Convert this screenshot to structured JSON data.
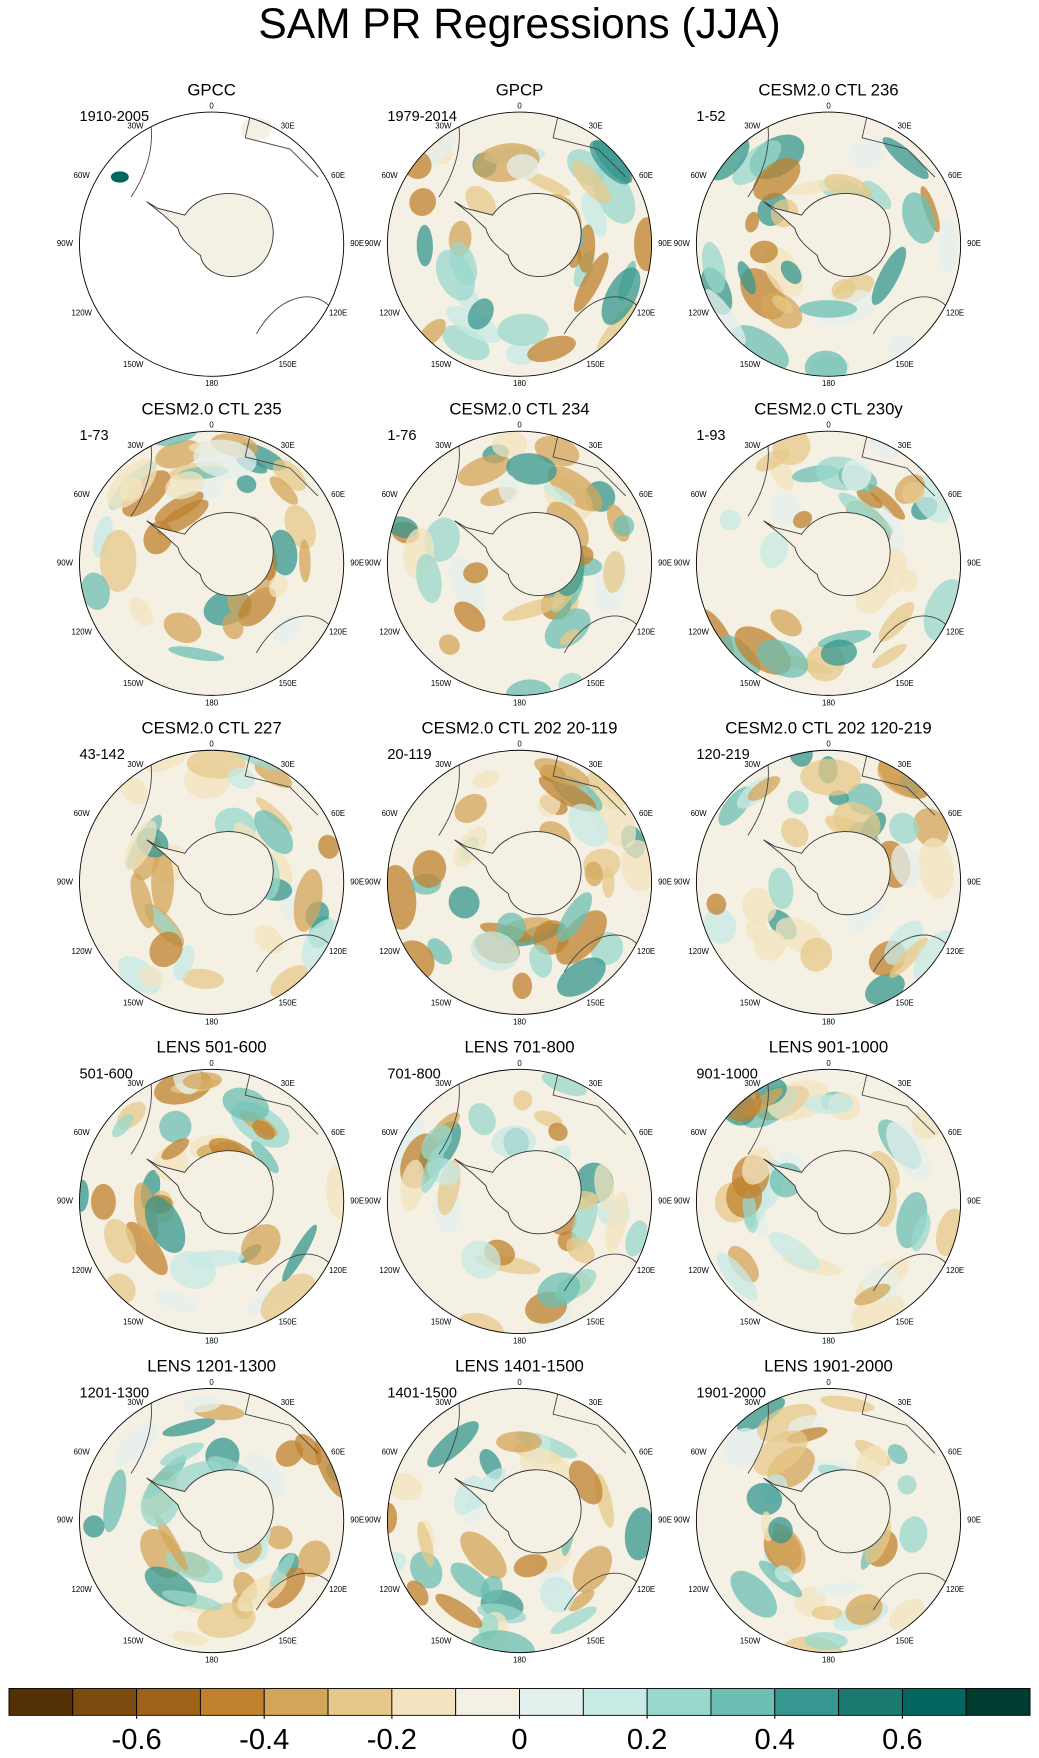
{
  "title": "SAM PR Regressions (JJA)",
  "lon_labels": [
    "0",
    "30E",
    "60E",
    "90E",
    "120E",
    "150E",
    "180",
    "150W",
    "120W",
    "90W",
    "60W",
    "30W"
  ],
  "panels": [
    {
      "title": "GPCC",
      "period": "1910-2005"
    },
    {
      "title": "GPCP",
      "period": "1979-2014"
    },
    {
      "title": "CESM2.0 CTL 236",
      "period": "1-52"
    },
    {
      "title": "CESM2.0 CTL 235",
      "period": "1-73"
    },
    {
      "title": "CESM2.0 CTL 234",
      "period": "1-76"
    },
    {
      "title": "CESM2.0 CTL 230y",
      "period": "1-93"
    },
    {
      "title": "CESM2.0 CTL 227",
      "period": "43-142"
    },
    {
      "title": "CESM2.0 CTL 202 20-119",
      "period": "20-119"
    },
    {
      "title": "CESM2.0 CTL 202 120-219",
      "period": "120-219"
    },
    {
      "title": "LENS 501-600",
      "period": "501-600"
    },
    {
      "title": "LENS 701-800",
      "period": "701-800"
    },
    {
      "title": "LENS 901-1000",
      "period": "901-1000"
    },
    {
      "title": "LENS 1201-1300",
      "period": "1201-1300"
    },
    {
      "title": "LENS 1401-1500",
      "period": "1401-1500"
    },
    {
      "title": "LENS 1901-2000",
      "period": "1901-2000"
    }
  ],
  "colorbar": {
    "range": [
      -0.8,
      0.8
    ],
    "colors": [
      "#543005",
      "#7d4a0f",
      "#9e6219",
      "#bf812d",
      "#d4a65a",
      "#e6c98a",
      "#f3e4bf",
      "#f5f0e4",
      "#e4f0ee",
      "#c7eae5",
      "#99d8cc",
      "#6cbfb2",
      "#35978f",
      "#1a7a70",
      "#01665e",
      "#003c30"
    ],
    "ticks": [
      -0.6,
      -0.4,
      -0.2,
      0,
      0.2,
      0.4,
      0.6
    ]
  }
}
